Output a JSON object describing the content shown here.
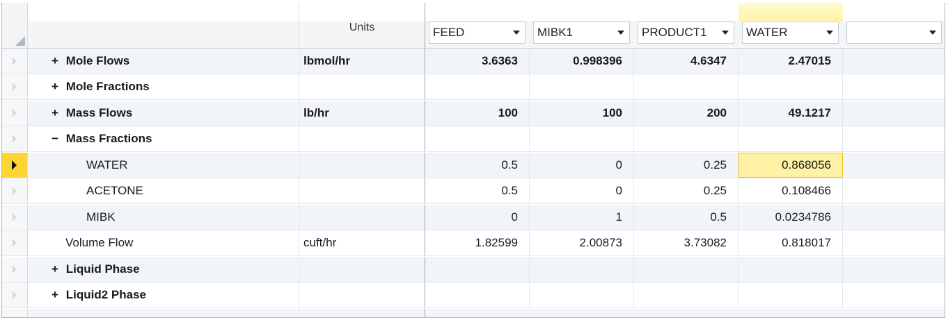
{
  "header": {
    "units_label": "Units",
    "columns": [
      {
        "stream": "FEED"
      },
      {
        "stream": "MIBK1"
      },
      {
        "stream": "PRODUCT1"
      },
      {
        "stream": "WATER"
      },
      {
        "stream": ""
      }
    ]
  },
  "rows": [
    {
      "expander": "+",
      "label": "Mole Flows",
      "units": "lbmol/hr",
      "values": [
        "3.6363",
        "0.998396",
        "4.6347",
        "2.47015",
        ""
      ]
    },
    {
      "expander": "+",
      "label": "Mole Fractions",
      "units": "",
      "values": [
        "",
        "",
        "",
        "",
        ""
      ]
    },
    {
      "expander": "+",
      "label": "Mass Flows",
      "units": "lb/hr",
      "values": [
        "100",
        "100",
        "200",
        "49.1217",
        ""
      ]
    },
    {
      "expander": "−",
      "label": "Mass Fractions",
      "units": "",
      "values": [
        "",
        "",
        "",
        "",
        ""
      ]
    },
    {
      "expander": "",
      "label": "WATER",
      "units": "",
      "values": [
        "0.5",
        "0",
        "0.25",
        "0.868056",
        ""
      ]
    },
    {
      "expander": "",
      "label": "ACETONE",
      "units": "",
      "values": [
        "0.5",
        "0",
        "0.25",
        "0.108466",
        ""
      ]
    },
    {
      "expander": "",
      "label": "MIBK",
      "units": "",
      "values": [
        "0",
        "1",
        "0.5",
        "0.0234786",
        ""
      ]
    },
    {
      "expander": "",
      "label": "Volume Flow",
      "units": "cuft/hr",
      "values": [
        "1.82599",
        "2.00873",
        "3.73082",
        "0.818017",
        ""
      ]
    },
    {
      "expander": "+",
      "label": "Liquid Phase",
      "units": "",
      "values": [
        "",
        "",
        "",
        "",
        ""
      ]
    },
    {
      "expander": "+",
      "label": "Liquid2 Phase",
      "units": "",
      "values": [
        "",
        "",
        "",
        "",
        ""
      ]
    }
  ],
  "selection": {
    "row_index": 4,
    "column": "WATER"
  },
  "colors": {
    "selected_row_marker": "#fcd534",
    "selected_cell": "#fff1a6",
    "alt_row": "#f1f5fa"
  }
}
